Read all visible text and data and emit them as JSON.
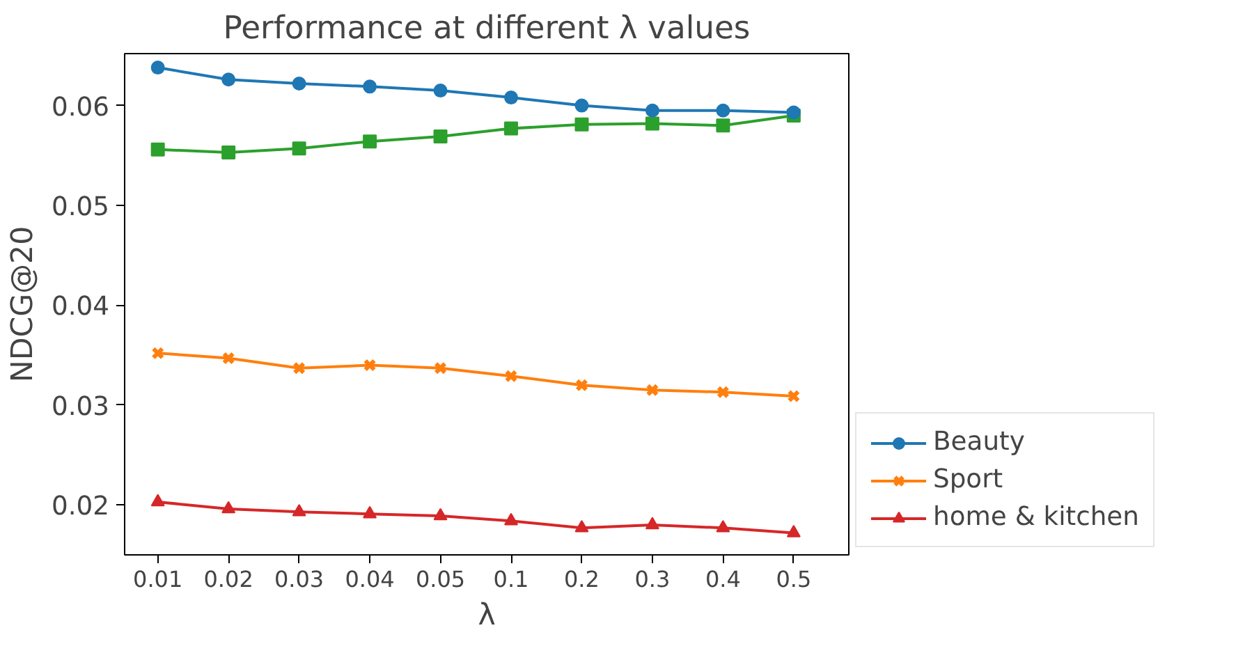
{
  "chart_data": {
    "type": "line",
    "title": "Performance at different λ values",
    "xlabel": "λ",
    "ylabel": "NDCG@20",
    "categories": [
      "0.01",
      "0.02",
      "0.03",
      "0.04",
      "0.05",
      "0.1",
      "0.2",
      "0.3",
      "0.4",
      "0.5"
    ],
    "ylim": [
      0.015,
      0.0652
    ],
    "yticks": [
      0.02,
      0.03,
      0.04,
      0.05,
      0.06
    ],
    "grid": false,
    "legend": "bottom right",
    "line_style": "solid",
    "series": [
      {
        "name": "Beauty",
        "color": "#1f77b4",
        "marker": "circle",
        "values": [
          0.0638,
          0.0626,
          0.0622,
          0.0619,
          0.0615,
          0.0608,
          0.06,
          0.0595,
          0.0595,
          0.0593
        ]
      },
      {
        "name": "Sport",
        "color": "#ff7f0e",
        "marker": "cross",
        "values": [
          0.0352,
          0.0347,
          0.0337,
          0.034,
          0.0337,
          0.0329,
          0.032,
          0.0315,
          0.0313,
          0.0309
        ]
      },
      {
        "color": "#2ca02c",
        "marker": "square",
        "values": [
          0.0556,
          0.0553,
          0.0557,
          0.0564,
          0.0569,
          0.0577,
          0.0581,
          0.0582,
          0.058,
          0.059
        ]
      },
      {
        "name": "home & kitchen",
        "color": "#d62728",
        "marker": "triangle",
        "values": [
          0.0203,
          0.0196,
          0.0193,
          0.0191,
          0.0189,
          0.0184,
          0.0177,
          0.018,
          0.0177,
          0.0172
        ]
      }
    ]
  }
}
